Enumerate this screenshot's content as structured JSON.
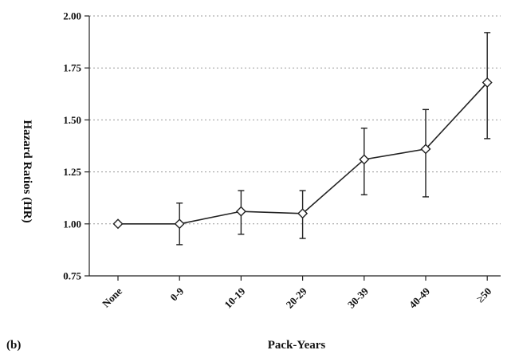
{
  "panel_label": "(b)",
  "chart_data": {
    "type": "line",
    "title": "",
    "xlabel": "Pack-Years",
    "ylabel": "Hazard Ratios (HR)",
    "categories": [
      "None",
      "0-9",
      "10-19",
      "20-29",
      "30-39",
      "40-49",
      "≥50"
    ],
    "series": [
      {
        "values": [
          1.0,
          1.0,
          1.06,
          1.05,
          1.31,
          1.36,
          1.68
        ],
        "ci_lower": [
          1.0,
          0.9,
          0.95,
          0.93,
          1.14,
          1.13,
          1.41
        ],
        "ci_upper": [
          1.0,
          1.1,
          1.16,
          1.16,
          1.46,
          1.55,
          1.92
        ],
        "marker": "diamond-open",
        "color": "#222222"
      }
    ],
    "ylim": [
      0.75,
      2.0
    ],
    "yticks": [
      "0.75",
      "1.00",
      "1.25",
      "1.50",
      "1.75",
      "2.00"
    ],
    "grid": "horizontal-dotted",
    "legend": "none"
  }
}
